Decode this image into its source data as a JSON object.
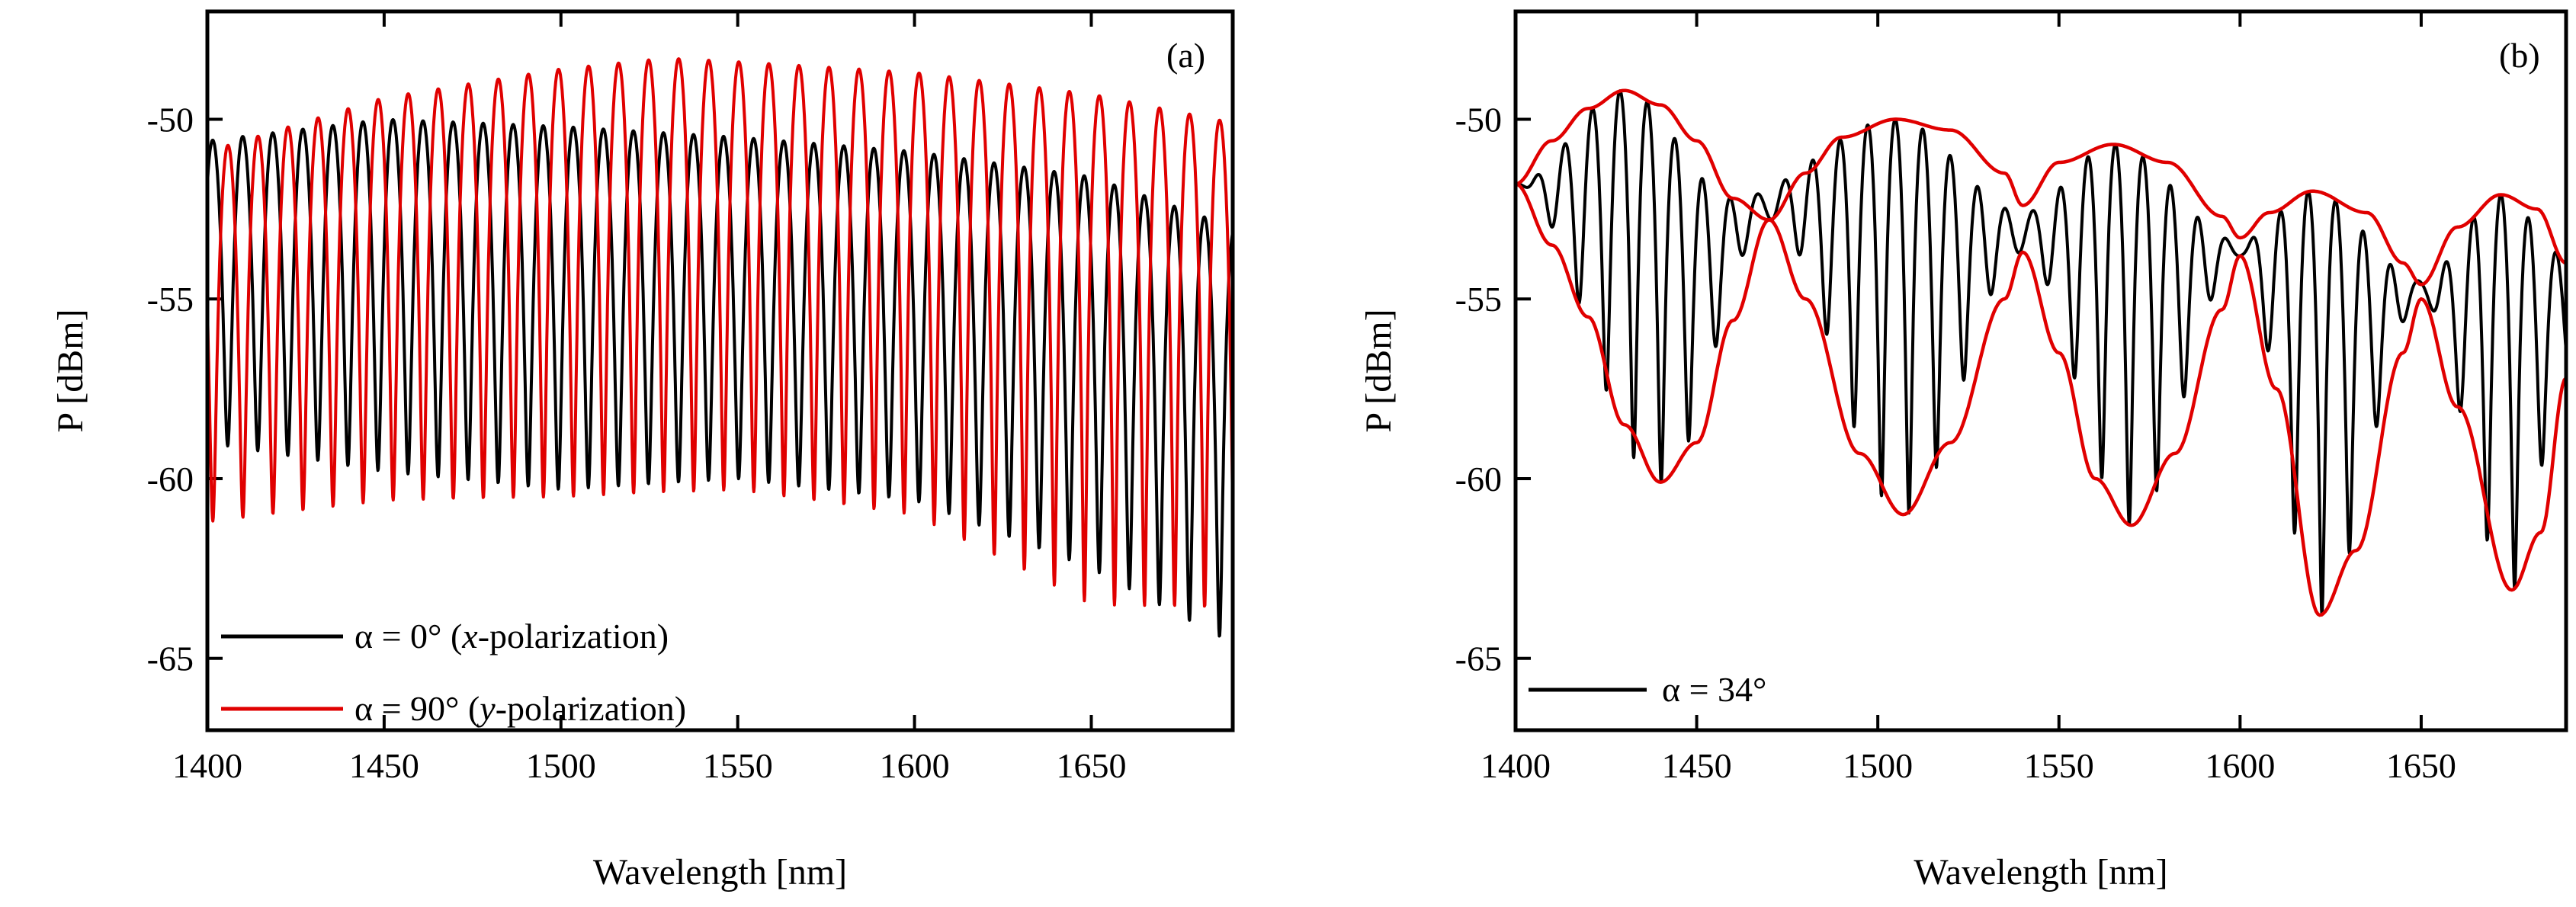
{
  "figure": {
    "panels": [
      "(a)",
      "(b)"
    ]
  },
  "chart_data": [
    {
      "type": "line",
      "panel_label": "(a)",
      "xlabel": "Wavelength [nm]",
      "ylabel": "P [dBm]",
      "xlim": [
        1400,
        1690
      ],
      "ylim": [
        -67,
        -47
      ],
      "xticks": [
        1400,
        1450,
        1500,
        1550,
        1600,
        1650
      ],
      "xtick_labels": [
        "1400",
        "1450",
        "1500",
        "1550",
        "1600",
        "1650"
      ],
      "yticks": [
        -50,
        -55,
        -60,
        -65
      ],
      "ytick_labels": [
        "-50",
        "-55",
        "-60",
        "-65"
      ],
      "legend_position": "bottom-left",
      "series": [
        {
          "name": "α = 0° (x-polarization)",
          "legend": {
            "pre": "α = 0°   (",
            "italic": "x",
            "post": "-polarization)"
          },
          "color": "#000000",
          "model": "fringe",
          "period_nm": 8.5,
          "start_nm": 1401.5,
          "max_dbm": [
            [
              1400,
              -50.6
            ],
            [
              1450,
              -50.0
            ],
            [
              1500,
              -50.2
            ],
            [
              1550,
              -50.5
            ],
            [
              1600,
              -50.9
            ],
            [
              1650,
              -51.6
            ],
            [
              1690,
              -53.0
            ]
          ],
          "min_dbm": [
            [
              1400,
              -59.0
            ],
            [
              1450,
              -59.8
            ],
            [
              1500,
              -60.3
            ],
            [
              1550,
              -60.0
            ],
            [
              1600,
              -60.6
            ],
            [
              1650,
              -62.5
            ],
            [
              1690,
              -64.6
            ]
          ]
        },
        {
          "name": "α = 90° (y-polarization)",
          "legend": {
            "pre": "α = 90° (",
            "italic": "y",
            "post": "-polarization)"
          },
          "color": "#e00000",
          "model": "fringe",
          "period_nm": 8.5,
          "start_nm": 1405.8,
          "max_dbm": [
            [
              1400,
              -50.9
            ],
            [
              1450,
              -49.4
            ],
            [
              1500,
              -48.6
            ],
            [
              1530,
              -48.3
            ],
            [
              1550,
              -48.4
            ],
            [
              1600,
              -48.7
            ],
            [
              1650,
              -49.3
            ],
            [
              1690,
              -50.1
            ]
          ],
          "min_dbm": [
            [
              1400,
              -61.2
            ],
            [
              1450,
              -60.6
            ],
            [
              1500,
              -60.5
            ],
            [
              1550,
              -60.3
            ],
            [
              1600,
              -61.0
            ],
            [
              1650,
              -63.5
            ],
            [
              1690,
              -63.6
            ]
          ]
        }
      ]
    },
    {
      "type": "line",
      "panel_label": "(b)",
      "xlabel": "Wavelength [nm]",
      "ylabel": "P [dBm]",
      "xlim": [
        1400,
        1690
      ],
      "ylim": [
        -67,
        -47
      ],
      "xticks": [
        1400,
        1450,
        1500,
        1550,
        1600,
        1650
      ],
      "xtick_labels": [
        "1400",
        "1450",
        "1500",
        "1550",
        "1600",
        "1650"
      ],
      "yticks": [
        -50,
        -55,
        -60,
        -65
      ],
      "ytick_labels": [
        "-50",
        "-55",
        "-60",
        "-65"
      ],
      "legend_position": "bottom-left",
      "series": [
        {
          "name": "α = 34°",
          "legend": {
            "pre": "α = 34°",
            "italic": "",
            "post": ""
          },
          "color": "#000000",
          "model": "beat",
          "period_nm": 7.6,
          "start_nm": 1406.0,
          "nodes_nm": [
            1405,
            1470,
            1540,
            1597,
            1649
          ],
          "upper_dbm": [
            [
              1400,
              -51.8
            ],
            [
              1430,
              -49.2
            ],
            [
              1460,
              -52.2
            ],
            [
              1505,
              -50.0
            ],
            [
              1540,
              -52.6
            ],
            [
              1565,
              -50.7
            ],
            [
              1600,
              -53.4
            ],
            [
              1620,
              -52.0
            ],
            [
              1650,
              -54.5
            ],
            [
              1672,
              -52.1
            ],
            [
              1690,
              -53.8
            ]
          ],
          "lower_dbm": [
            [
              1400,
              -51.8
            ],
            [
              1440,
              -60.1
            ],
            [
              1470,
              -52.8
            ],
            [
              1507,
              -61.0
            ],
            [
              1540,
              -53.7
            ],
            [
              1570,
              -61.3
            ],
            [
              1600,
              -53.8
            ],
            [
              1622,
              -63.8
            ],
            [
              1650,
              -55.0
            ],
            [
              1675,
              -63.1
            ],
            [
              1690,
              -57.2
            ]
          ]
        },
        {
          "name": "upper envelope",
          "color": "#e00000",
          "model": "points",
          "points": [
            [
              1400,
              -51.8
            ],
            [
              1410,
              -50.6
            ],
            [
              1420,
              -49.7
            ],
            [
              1430,
              -49.2
            ],
            [
              1440,
              -49.6
            ],
            [
              1450,
              -50.6
            ],
            [
              1460,
              -52.2
            ],
            [
              1470,
              -52.8
            ],
            [
              1480,
              -51.5
            ],
            [
              1490,
              -50.5
            ],
            [
              1505,
              -50.0
            ],
            [
              1520,
              -50.3
            ],
            [
              1535,
              -51.5
            ],
            [
              1540,
              -52.4
            ],
            [
              1550,
              -51.2
            ],
            [
              1565,
              -50.7
            ],
            [
              1580,
              -51.2
            ],
            [
              1595,
              -52.7
            ],
            [
              1600,
              -53.3
            ],
            [
              1608,
              -52.6
            ],
            [
              1620,
              -52.0
            ],
            [
              1635,
              -52.6
            ],
            [
              1645,
              -54.0
            ],
            [
              1650,
              -54.6
            ],
            [
              1660,
              -53.0
            ],
            [
              1672,
              -52.1
            ],
            [
              1682,
              -52.5
            ],
            [
              1690,
              -54.0
            ]
          ]
        },
        {
          "name": "lower envelope",
          "color": "#e00000",
          "model": "points",
          "points": [
            [
              1400,
              -51.8
            ],
            [
              1410,
              -53.5
            ],
            [
              1420,
              -55.5
            ],
            [
              1430,
              -58.5
            ],
            [
              1440,
              -60.1
            ],
            [
              1450,
              -59.0
            ],
            [
              1460,
              -55.6
            ],
            [
              1470,
              -52.8
            ],
            [
              1480,
              -55.0
            ],
            [
              1495,
              -59.3
            ],
            [
              1507,
              -61.0
            ],
            [
              1520,
              -59.0
            ],
            [
              1535,
              -55.0
            ],
            [
              1540,
              -53.7
            ],
            [
              1550,
              -56.5
            ],
            [
              1560,
              -60.0
            ],
            [
              1570,
              -61.3
            ],
            [
              1582,
              -59.3
            ],
            [
              1595,
              -55.3
            ],
            [
              1600,
              -53.8
            ],
            [
              1610,
              -57.5
            ],
            [
              1622,
              -63.8
            ],
            [
              1632,
              -62.0
            ],
            [
              1645,
              -56.5
            ],
            [
              1650,
              -55.0
            ],
            [
              1660,
              -58.0
            ],
            [
              1675,
              -63.1
            ],
            [
              1683,
              -61.5
            ],
            [
              1690,
              -57.2
            ]
          ]
        }
      ]
    }
  ]
}
